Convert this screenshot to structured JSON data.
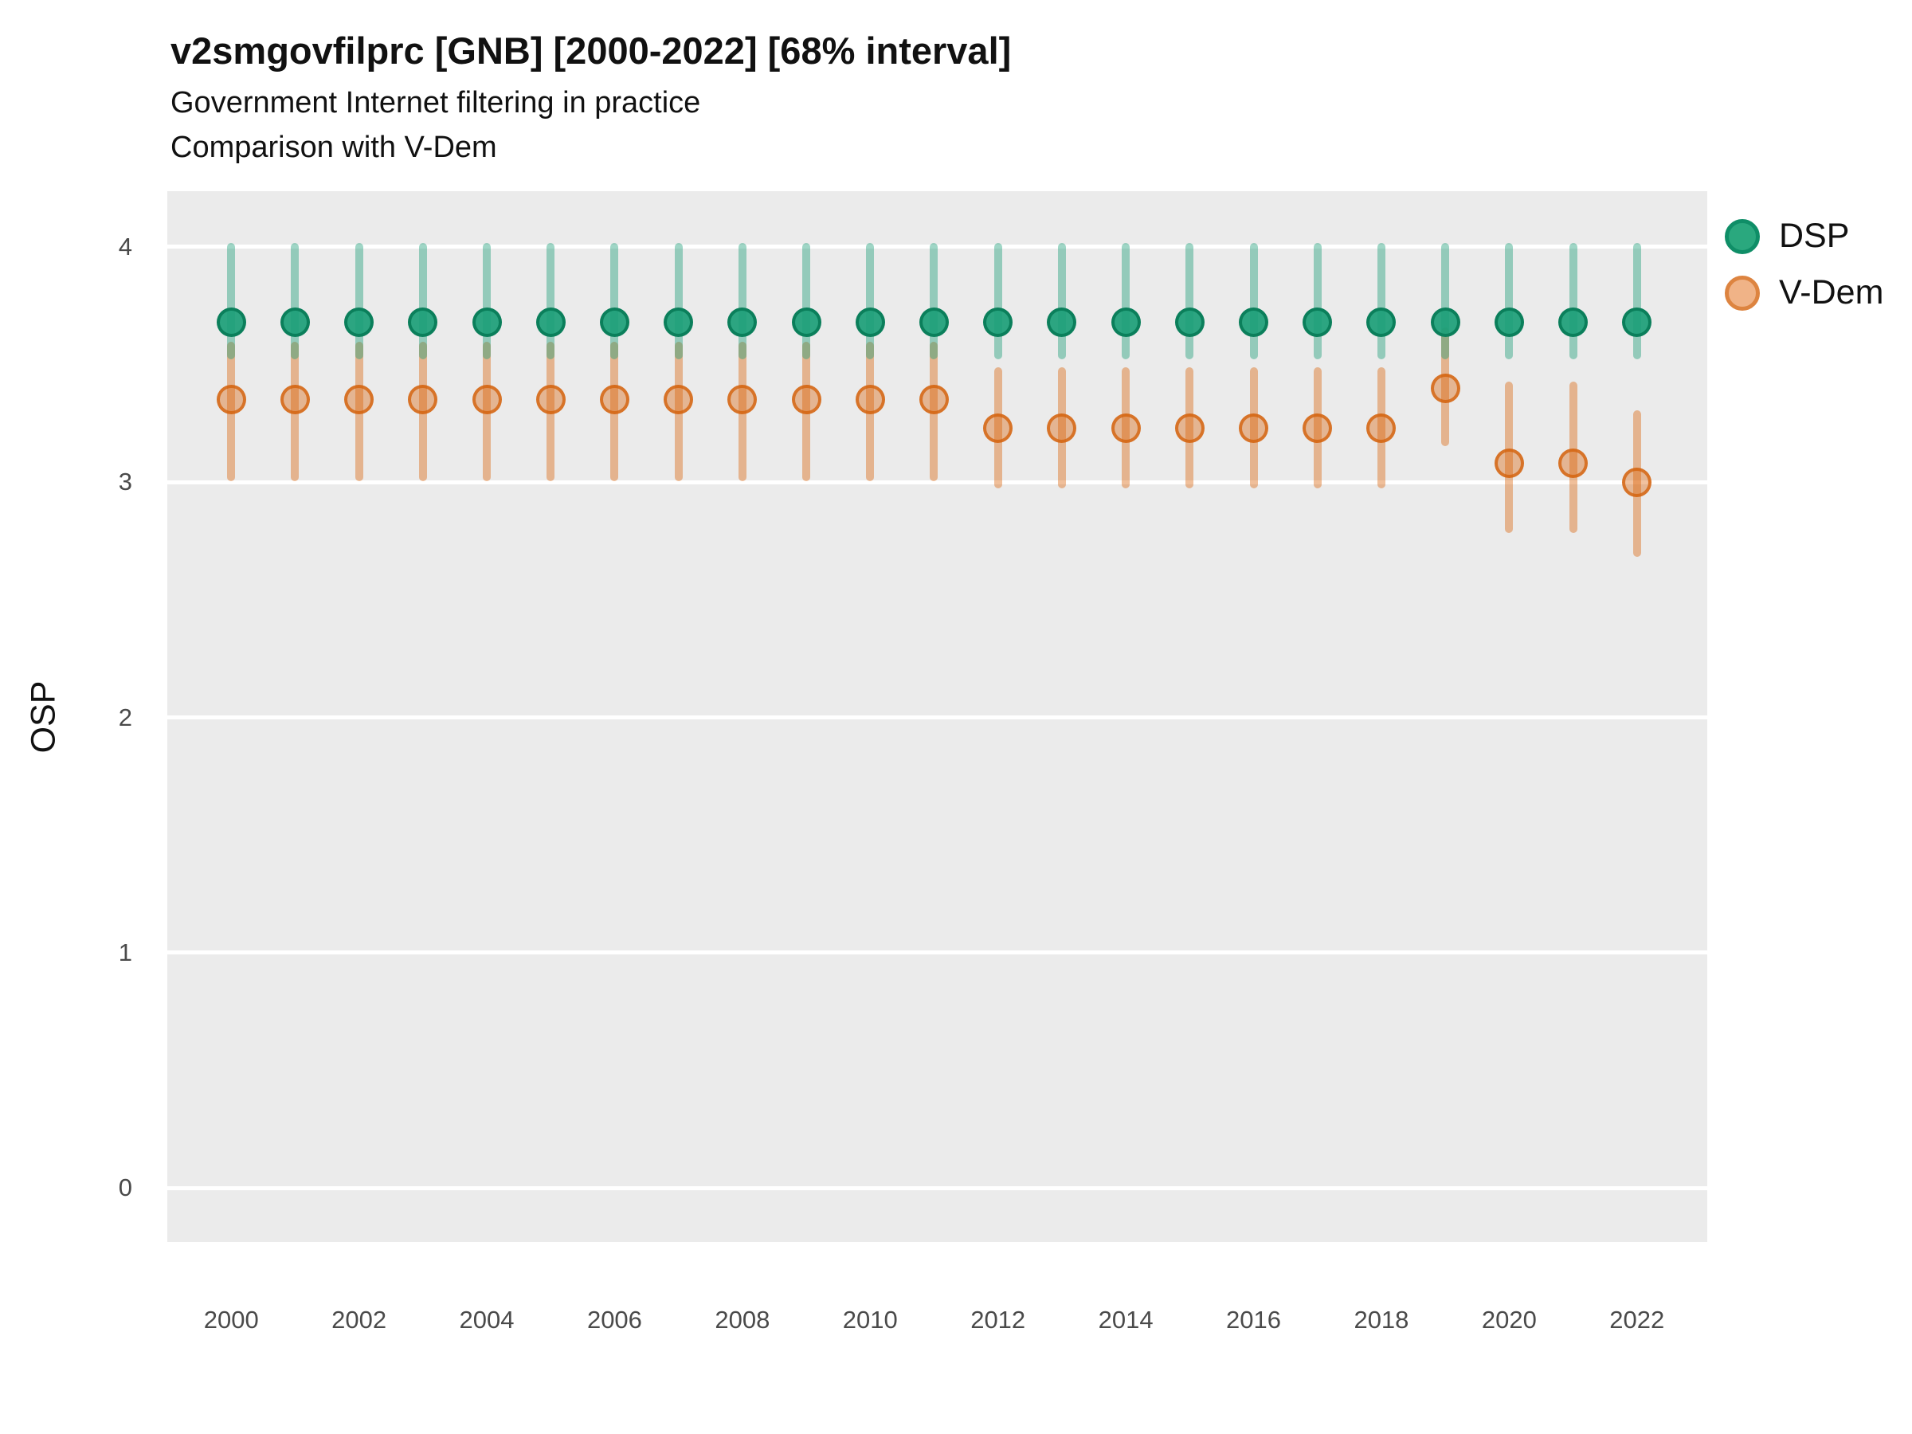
{
  "header": {
    "title": "v2smgovfilprc [GNB] [2000-2022] [68% interval]",
    "subtitle1": "Government Internet filtering in practice",
    "subtitle2": "Comparison with V-Dem"
  },
  "axes": {
    "y_label": "OSP",
    "y_ticks": [
      0,
      1,
      2,
      3,
      4
    ],
    "x_ticks": [
      2000,
      2002,
      2004,
      2006,
      2008,
      2010,
      2012,
      2014,
      2016,
      2018,
      2020,
      2022
    ]
  },
  "legend": [
    {
      "label": "DSP",
      "fill": "#2aa87e",
      "stroke": "#0f8e67"
    },
    {
      "label": "V-Dem",
      "fill": "#f0b387",
      "stroke": "#dd8440"
    }
  ],
  "colors": {
    "dsp": "#1b9e77",
    "vdem": "#d95f02",
    "panel_bg": "#ebebeb",
    "gridline": "#ffffff",
    "dsp_bar": "rgba(27,158,119,0.42)",
    "vdem_bar": "rgba(217,95,2,0.40)",
    "dsp_point_fill": "rgba(27,158,119,0.92)",
    "dsp_point_stroke": "rgba(10,125,88,0.95)",
    "vdem_point_fill": "rgba(217,95,2,0.38)",
    "vdem_point_stroke": "rgba(211,98,13,0.80)"
  },
  "chart_data": {
    "type": "pointrange",
    "title": "v2smgovfilprc [GNB] [2000-2022] [68% interval]",
    "xlabel": "",
    "ylabel": "OSP",
    "interval": "68%",
    "ylim": [
      0,
      4
    ],
    "y_domain": [
      -0.23,
      4.237
    ],
    "x_domain": [
      1999.0,
      2023.1
    ],
    "grid": "horizontal-only",
    "legend_position": "right",
    "x": [
      2000,
      2001,
      2002,
      2003,
      2004,
      2005,
      2006,
      2007,
      2008,
      2009,
      2010,
      2011,
      2012,
      2013,
      2014,
      2015,
      2016,
      2017,
      2018,
      2019,
      2020,
      2021,
      2022
    ],
    "series": [
      {
        "name": "DSP",
        "est": [
          3.68,
          3.68,
          3.68,
          3.68,
          3.68,
          3.68,
          3.68,
          3.68,
          3.68,
          3.68,
          3.68,
          3.68,
          3.68,
          3.68,
          3.68,
          3.68,
          3.68,
          3.68,
          3.68,
          3.68,
          3.68,
          3.68,
          3.68
        ],
        "lo": [
          3.54,
          3.54,
          3.54,
          3.54,
          3.54,
          3.54,
          3.54,
          3.54,
          3.54,
          3.54,
          3.54,
          3.54,
          3.54,
          3.54,
          3.54,
          3.54,
          3.54,
          3.54,
          3.54,
          3.54,
          3.54,
          3.54,
          3.54
        ],
        "hi": [
          4.0,
          4.0,
          4.0,
          4.0,
          4.0,
          4.0,
          4.0,
          4.0,
          4.0,
          4.0,
          4.0,
          4.0,
          4.0,
          4.0,
          4.0,
          4.0,
          4.0,
          4.0,
          4.0,
          4.0,
          4.0,
          4.0,
          4.0
        ]
      },
      {
        "name": "V-Dem",
        "est": [
          3.35,
          3.35,
          3.35,
          3.35,
          3.35,
          3.35,
          3.35,
          3.35,
          3.35,
          3.35,
          3.35,
          3.35,
          3.23,
          3.23,
          3.23,
          3.23,
          3.23,
          3.23,
          3.23,
          3.4,
          3.08,
          3.08,
          3.0
        ],
        "lo": [
          3.02,
          3.02,
          3.02,
          3.02,
          3.02,
          3.02,
          3.02,
          3.02,
          3.02,
          3.02,
          3.02,
          3.02,
          2.99,
          2.99,
          2.99,
          2.99,
          2.99,
          2.99,
          2.99,
          3.17,
          2.8,
          2.8,
          2.7
        ],
        "hi": [
          3.58,
          3.58,
          3.58,
          3.58,
          3.58,
          3.58,
          3.58,
          3.58,
          3.58,
          3.58,
          3.58,
          3.58,
          3.47,
          3.47,
          3.47,
          3.47,
          3.47,
          3.47,
          3.47,
          3.64,
          3.41,
          3.41,
          3.29
        ]
      }
    ]
  }
}
